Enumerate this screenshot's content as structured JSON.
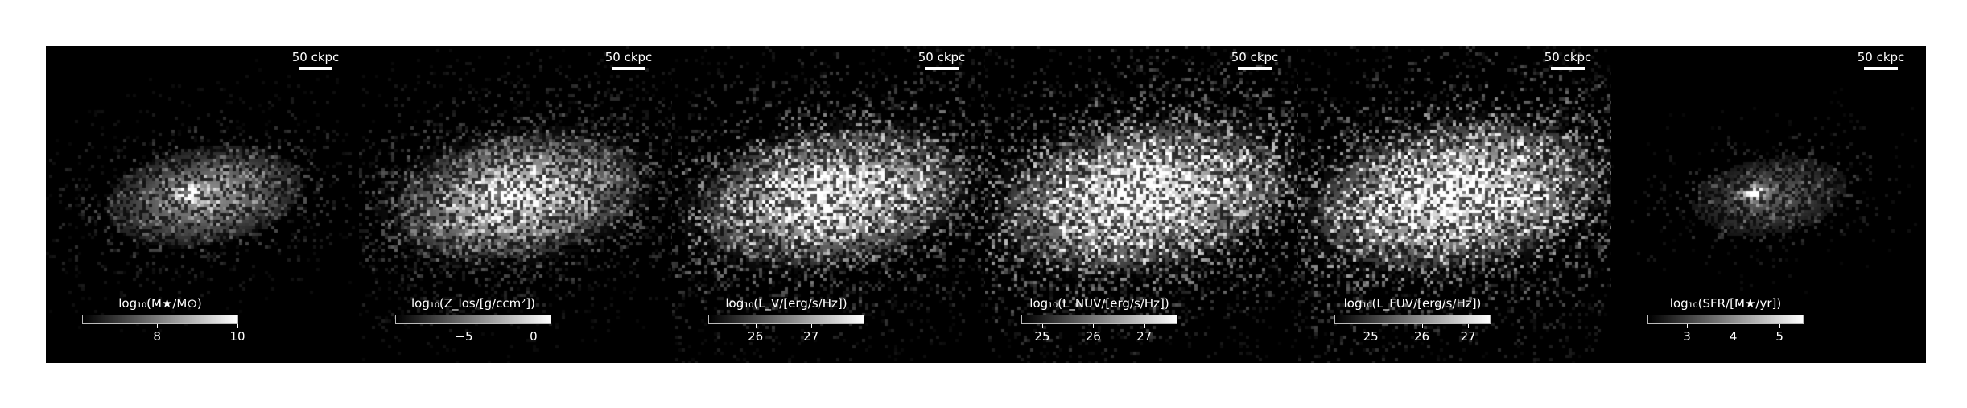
{
  "figure": {
    "scale_bar_label": "50 ckpc",
    "panels": [
      {
        "id": "stellar-mass",
        "colorbar_title": "log₁₀(M★/M⊙)",
        "ticks": [
          "8",
          "10"
        ],
        "tick_pos": [
          0.48,
          1.0
        ],
        "spread": 1.0,
        "core": 1.0,
        "fill": 0.55,
        "noise": 0.35
      },
      {
        "id": "metallicity",
        "colorbar_title": "log₁₀(Z_los/[g/ccm²])",
        "ticks": [
          "−5",
          "0"
        ],
        "tick_pos": [
          0.44,
          0.89
        ],
        "spread": 1.25,
        "core": 0.9,
        "fill": 0.8,
        "noise": 0.45
      },
      {
        "id": "v-luminosity",
        "colorbar_title": "log₁₀(L_V/[erg/s/Hz])",
        "ticks": [
          "26",
          "27"
        ],
        "tick_pos": [
          0.3,
          0.66
        ],
        "spread": 1.35,
        "core": 0.25,
        "fill": 0.85,
        "noise": 0.7
      },
      {
        "id": "nuv-luminosity",
        "colorbar_title": "log₁₀(L_NUV/[erg/s/Hz])",
        "ticks": [
          "25",
          "26",
          "27"
        ],
        "tick_pos": [
          0.13,
          0.46,
          0.79
        ],
        "spread": 1.45,
        "core": 0.25,
        "fill": 0.9,
        "noise": 0.8
      },
      {
        "id": "fuv-luminosity",
        "colorbar_title": "log₁₀(L_FUV/[erg/s/Hz])",
        "ticks": [
          "25",
          "26",
          "27"
        ],
        "tick_pos": [
          0.23,
          0.56,
          0.86
        ],
        "spread": 1.45,
        "core": 0.25,
        "fill": 0.9,
        "noise": 0.8
      },
      {
        "id": "sfr",
        "colorbar_title": "log₁₀(SFR/[M★/yr])",
        "ticks": [
          "3",
          "4",
          "5"
        ],
        "tick_pos": [
          0.25,
          0.55,
          0.85
        ],
        "spread": 0.8,
        "core": 0.9,
        "fill": 0.35,
        "noise": 0.3
      }
    ]
  }
}
